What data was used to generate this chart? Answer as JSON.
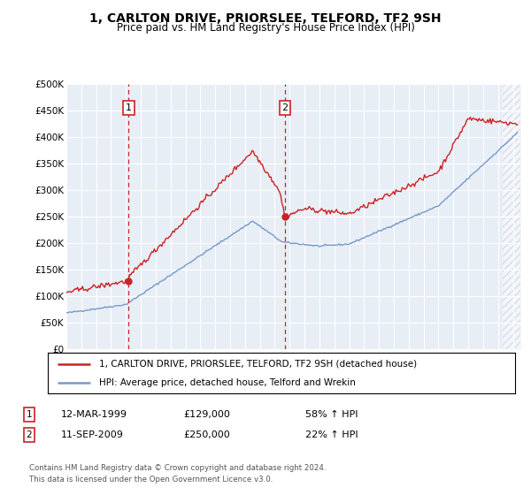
{
  "title": "1, CARLTON DRIVE, PRIORSLEE, TELFORD, TF2 9SH",
  "subtitle": "Price paid vs. HM Land Registry's House Price Index (HPI)",
  "background_color": "#e8eef6",
  "red_color": "#cc2222",
  "blue_color": "#7799cc",
  "dashed_color": "#cc2222",
  "ylim": [
    0,
    500000
  ],
  "yticks": [
    0,
    50000,
    100000,
    150000,
    200000,
    250000,
    300000,
    350000,
    400000,
    450000,
    500000
  ],
  "ytick_labels": [
    "£0",
    "£50K",
    "£100K",
    "£150K",
    "£200K",
    "£250K",
    "£300K",
    "£350K",
    "£400K",
    "£450K",
    "£500K"
  ],
  "purchase1_date": 1999.19,
  "purchase1_price": 129000,
  "purchase2_date": 2009.69,
  "purchase2_price": 250000,
  "legend_red": "1, CARLTON DRIVE, PRIORSLEE, TELFORD, TF2 9SH (detached house)",
  "legend_blue": "HPI: Average price, detached house, Telford and Wrekin",
  "note1_date": "12-MAR-1999",
  "note1_price": "£129,000",
  "note1_hpi": "58% ↑ HPI",
  "note2_date": "11-SEP-2009",
  "note2_price": "£250,000",
  "note2_hpi": "22% ↑ HPI",
  "footer": "Contains HM Land Registry data © Crown copyright and database right 2024.\nThis data is licensed under the Open Government Licence v3.0.",
  "xmin": 1995.0,
  "xmax": 2025.5,
  "hatch_start": 2024.3
}
